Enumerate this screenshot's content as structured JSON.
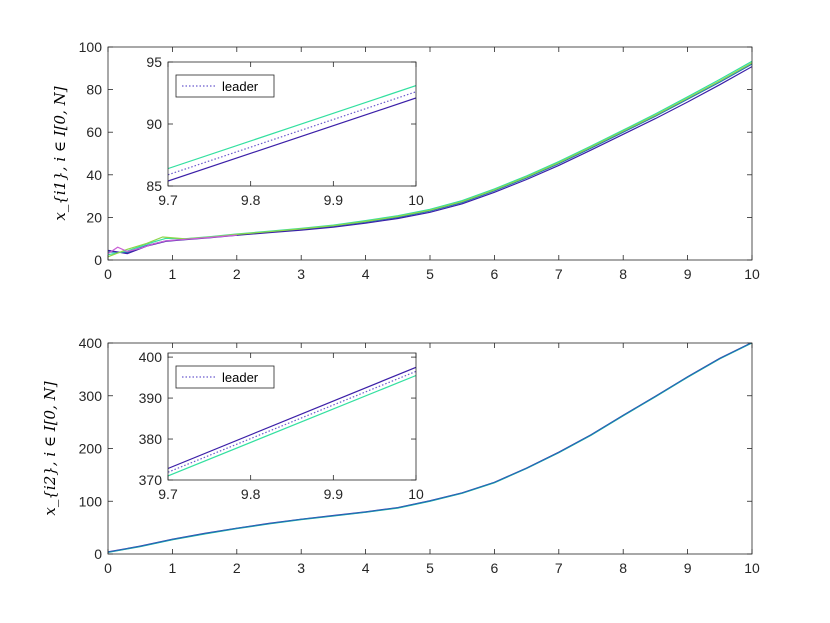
{
  "chart_data": [
    {
      "id": "top",
      "type": "line",
      "ylabel": "x_{i1}, i ∈ I[0, N]",
      "xlim": [
        0,
        10
      ],
      "ylim": [
        0,
        100
      ],
      "xticks": [
        "0",
        "1",
        "2",
        "3",
        "4",
        "5",
        "6",
        "7",
        "8",
        "9",
        "10"
      ],
      "yticks": [
        "0",
        "20",
        "40",
        "60",
        "80",
        "100"
      ],
      "grid": false,
      "series": [
        {
          "color": "#1f77b4",
          "style": "solid",
          "x": [
            0,
            0.3,
            0.6,
            0.9,
            1.2,
            1.6,
            2,
            2.5,
            3,
            3.5,
            4,
            4.5,
            5,
            5.5,
            6,
            6.5,
            7,
            7.5,
            8,
            8.5,
            9,
            9.5,
            10
          ],
          "y": [
            3.8,
            3.5,
            6.8,
            9.0,
            9.8,
            10.7,
            11.8,
            13.0,
            14.3,
            15.8,
            17.8,
            20.0,
            23.0,
            27.0,
            32.5,
            38.5,
            45.2,
            52.5,
            60.0,
            67.5,
            75.5,
            83.5,
            92.0
          ]
        },
        {
          "color": "#3b1fa8",
          "style": "solid",
          "x": [
            0,
            0.3,
            0.6,
            0.9,
            1.2,
            1.6,
            2,
            2.5,
            3,
            3.5,
            4,
            4.5,
            5,
            5.5,
            6,
            6.5,
            7,
            7.5,
            8,
            8.5,
            9,
            9.5,
            10
          ],
          "y": [
            4.5,
            3.0,
            6.5,
            8.8,
            9.6,
            10.5,
            11.6,
            12.8,
            14.0,
            15.4,
            17.3,
            19.5,
            22.4,
            26.4,
            31.8,
            37.8,
            44.4,
            51.6,
            59.0,
            66.4,
            74.2,
            82.3,
            90.8
          ]
        },
        {
          "color": "#33e0a0",
          "style": "solid",
          "x": [
            0,
            0.3,
            0.6,
            0.9,
            1.2,
            1.6,
            2,
            2.5,
            3,
            3.5,
            4,
            4.5,
            5,
            5.5,
            6,
            6.5,
            7,
            7.5,
            8,
            8.5,
            9,
            9.5,
            10
          ],
          "y": [
            2.5,
            4.2,
            7.5,
            10.2,
            10.0,
            11.0,
            12.2,
            13.5,
            14.9,
            16.4,
            18.5,
            20.8,
            23.8,
            27.9,
            33.4,
            39.5,
            46.2,
            53.5,
            61.0,
            68.6,
            76.6,
            84.8,
            93.3
          ]
        },
        {
          "color": "#8fd64a",
          "style": "solid",
          "x": [
            0,
            0.3,
            0.6,
            0.85,
            1.2,
            1.6,
            2,
            2.5,
            3,
            3.5,
            4,
            4.5,
            5,
            5.5,
            6,
            6.5,
            7,
            7.5,
            8,
            8.5,
            9,
            9.5,
            10
          ],
          "y": [
            1.5,
            5.0,
            7.8,
            10.8,
            9.9,
            10.8,
            12.0,
            13.3,
            14.6,
            16.1,
            18.1,
            20.4,
            23.4,
            27.4,
            32.9,
            39.0,
            45.7,
            53.0,
            60.5,
            68.0,
            76.0,
            84.1,
            92.6
          ]
        },
        {
          "color": "#c95fd6",
          "style": "solid",
          "x": [
            0,
            0.15,
            0.3,
            0.5,
            0.7,
            0.9,
            1.2,
            1.6,
            2
          ],
          "y": [
            3.0,
            6.0,
            4.0,
            5.5,
            7.5,
            9.0,
            9.7,
            10.6,
            11.7
          ]
        }
      ],
      "inset": {
        "xlim": [
          9.7,
          10
        ],
        "ylim": [
          85,
          95
        ],
        "xticks": [
          "9.7",
          "9.8",
          "9.9",
          "10"
        ],
        "yticks": [
          "85",
          "90",
          "95"
        ],
        "legend": "leader",
        "series": [
          {
            "color": "#33e0a0",
            "style": "solid",
            "x": [
              9.7,
              10
            ],
            "y": [
              86.4,
              93.1
            ]
          },
          {
            "color": "#3b1fa8",
            "style": "solid",
            "x": [
              9.7,
              10
            ],
            "y": [
              85.4,
              92.1
            ]
          },
          {
            "color": "#6a5acd",
            "style": "dotted",
            "x": [
              9.7,
              10
            ],
            "y": [
              85.9,
              92.6
            ]
          }
        ]
      }
    },
    {
      "id": "bottom",
      "type": "line",
      "ylabel": "x_{i2}, i ∈ I[0, N]",
      "xlim": [
        0,
        10
      ],
      "ylim": [
        0,
        400
      ],
      "xticks": [
        "0",
        "1",
        "2",
        "3",
        "4",
        "5",
        "6",
        "7",
        "8",
        "9",
        "10"
      ],
      "yticks": [
        "0",
        "100",
        "200",
        "300",
        "400"
      ],
      "grid": false,
      "series": [
        {
          "color": "#33e0a0",
          "style": "solid",
          "x": [
            0,
            0.5,
            1,
            1.5,
            2,
            2.5,
            3,
            3.5,
            4,
            4.5,
            5,
            5.5,
            6,
            6.5,
            7,
            7.5,
            8,
            8.5,
            9,
            9.5,
            10
          ],
          "y": [
            3,
            14,
            27,
            38,
            48,
            57,
            65,
            72,
            79,
            87,
            100,
            115,
            135,
            162,
            192,
            225,
            262,
            298,
            335,
            370,
            400
          ]
        },
        {
          "color": "#3b1fa8",
          "style": "solid",
          "x": [
            0,
            0.5,
            1,
            1.5,
            2,
            2.5,
            3,
            3.5,
            4,
            4.5,
            5,
            5.5,
            6,
            6.5,
            7,
            7.5,
            8,
            8.5,
            9,
            9.5,
            10
          ],
          "y": [
            4,
            15,
            28,
            39,
            49,
            58,
            66,
            73,
            80,
            88,
            101,
            116,
            136,
            163,
            193,
            226,
            263,
            299,
            336,
            371,
            401
          ]
        },
        {
          "color": "#1f77b4",
          "style": "solid",
          "x": [
            0,
            0.5,
            1,
            1.5,
            2,
            2.5,
            3,
            3.5,
            4,
            4.5,
            5,
            5.5,
            6,
            6.5,
            7,
            7.5,
            8,
            8.5,
            9,
            9.5,
            10
          ],
          "y": [
            3.5,
            14.5,
            27.5,
            38.5,
            48.5,
            57.5,
            65.5,
            72.5,
            79.5,
            87.5,
            100.5,
            115.5,
            135.5,
            162.5,
            192.5,
            225.5,
            262.5,
            298.5,
            335.5,
            370.5,
            400.5
          ]
        }
      ],
      "inset": {
        "xlim": [
          9.7,
          10
        ],
        "ylim": [
          370,
          401
        ],
        "xticks": [
          "9.7",
          "9.8",
          "9.9",
          "10"
        ],
        "yticks": [
          "370",
          "380",
          "390",
          "400"
        ],
        "legend": "leader",
        "series": [
          {
            "color": "#3b1fa8",
            "style": "solid",
            "x": [
              9.7,
              10
            ],
            "y": [
              372.8,
              397.5
            ]
          },
          {
            "color": "#33e0a0",
            "style": "solid",
            "x": [
              9.7,
              10
            ],
            "y": [
              371.0,
              395.5
            ]
          },
          {
            "color": "#6a5acd",
            "style": "dotted",
            "x": [
              9.7,
              10
            ],
            "y": [
              371.9,
              396.5
            ]
          }
        ]
      }
    }
  ]
}
